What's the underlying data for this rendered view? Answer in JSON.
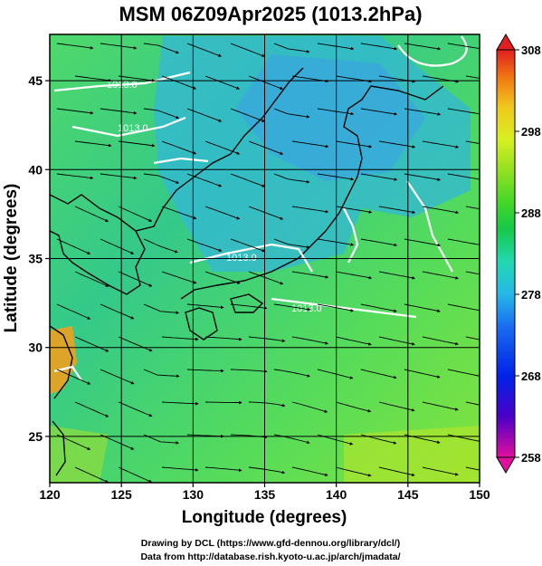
{
  "title": "MSM 06Z09Apr2025 (1013.2hPa)",
  "map": {
    "xlabel": "Longitude (degrees)",
    "ylabel": "Latitude  (degrees)",
    "x_ticks": [
      "120",
      "125",
      "130",
      "135",
      "140",
      "145",
      "150"
    ],
    "y_ticks": [
      "25",
      "30",
      "35",
      "40",
      "45"
    ],
    "lon_range": [
      120,
      150
    ],
    "lat_range": [
      22.4,
      47.6
    ],
    "gridlines": true,
    "contour_labels": [
      "1013.0",
      "1013.0",
      "1013.0",
      "1013.0"
    ]
  },
  "colorbar": {
    "ticks": [
      "308",
      "298",
      "288",
      "278",
      "268",
      "258"
    ],
    "range": [
      258,
      308
    ],
    "colors": [
      "#e0109c",
      "#4b00c8",
      "#0022e6",
      "#1a6cf0",
      "#27b7e8",
      "#22d8b0",
      "#17c84a",
      "#3fd62a",
      "#8fe020",
      "#d8ef22",
      "#f0c81e",
      "#f07a12",
      "#e23a1a",
      "#e02020"
    ]
  },
  "footer": {
    "line1": "Drawing by DCL (https://www.gfd-dennou.org/library/dcl/)",
    "line2": "Data from http://database.rish.kyoto-u.ac.jp/arch/jmadata/"
  }
}
